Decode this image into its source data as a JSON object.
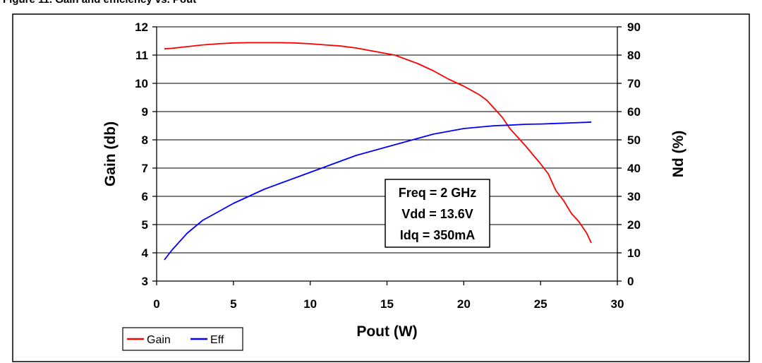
{
  "header_fragment": "Figure 11. Gain and efficiency vs. Pout",
  "chart_data": {
    "type": "line",
    "xlabel": "Pout (W)",
    "ylabel": "Gain (db)",
    "y2label": "Nd (%)",
    "xlim": [
      0,
      30
    ],
    "ylim": [
      3,
      12
    ],
    "y2lim": [
      0,
      90
    ],
    "xticks": [
      0,
      5,
      10,
      15,
      20,
      25,
      30
    ],
    "yticks": [
      3,
      4,
      5,
      6,
      7,
      8,
      9,
      10,
      11,
      12
    ],
    "y2ticks": [
      0,
      10,
      20,
      30,
      40,
      50,
      60,
      70,
      80,
      90
    ],
    "grid": "horizontal",
    "legend_position": "bottom-left",
    "annotation": [
      "Freq = 2 GHz",
      "Vdd = 13.6V",
      "Idq = 350mA"
    ],
    "series": [
      {
        "name": "Gain",
        "axis": "left",
        "color": "#ff0000",
        "x": [
          0.5,
          1,
          2,
          3,
          4,
          5,
          6,
          8,
          9,
          10,
          11,
          12,
          13,
          14,
          15,
          15.5,
          16,
          17,
          18,
          19,
          20,
          21,
          21.5,
          22,
          22.5,
          23,
          24,
          25,
          25.5,
          26,
          26.5,
          27,
          27.5,
          28,
          28.3
        ],
        "y": [
          11.22,
          11.24,
          11.3,
          11.36,
          11.4,
          11.43,
          11.44,
          11.44,
          11.43,
          11.4,
          11.36,
          11.32,
          11.25,
          11.15,
          11.05,
          11.0,
          10.9,
          10.7,
          10.45,
          10.15,
          9.9,
          9.6,
          9.4,
          9.1,
          8.8,
          8.4,
          7.8,
          7.15,
          6.8,
          6.2,
          5.85,
          5.4,
          5.1,
          4.7,
          4.35
        ]
      },
      {
        "name": "Eff",
        "axis": "right",
        "color": "#0000ff",
        "x": [
          0.5,
          1,
          2,
          3,
          4,
          5,
          6,
          7,
          8,
          9,
          10,
          11,
          12,
          13,
          14,
          15,
          16,
          17,
          18,
          19,
          20,
          21,
          22,
          23,
          24,
          25,
          26,
          27,
          28,
          28.3
        ],
        "y": [
          7.5,
          11,
          17,
          21.5,
          24.5,
          27.5,
          30,
          32.5,
          34.5,
          36.5,
          38.5,
          40.5,
          42.5,
          44.5,
          46,
          47.5,
          49,
          50.5,
          52,
          53,
          54,
          54.5,
          55,
          55.2,
          55.5,
          55.6,
          55.8,
          56,
          56.2,
          56.3
        ]
      }
    ]
  }
}
